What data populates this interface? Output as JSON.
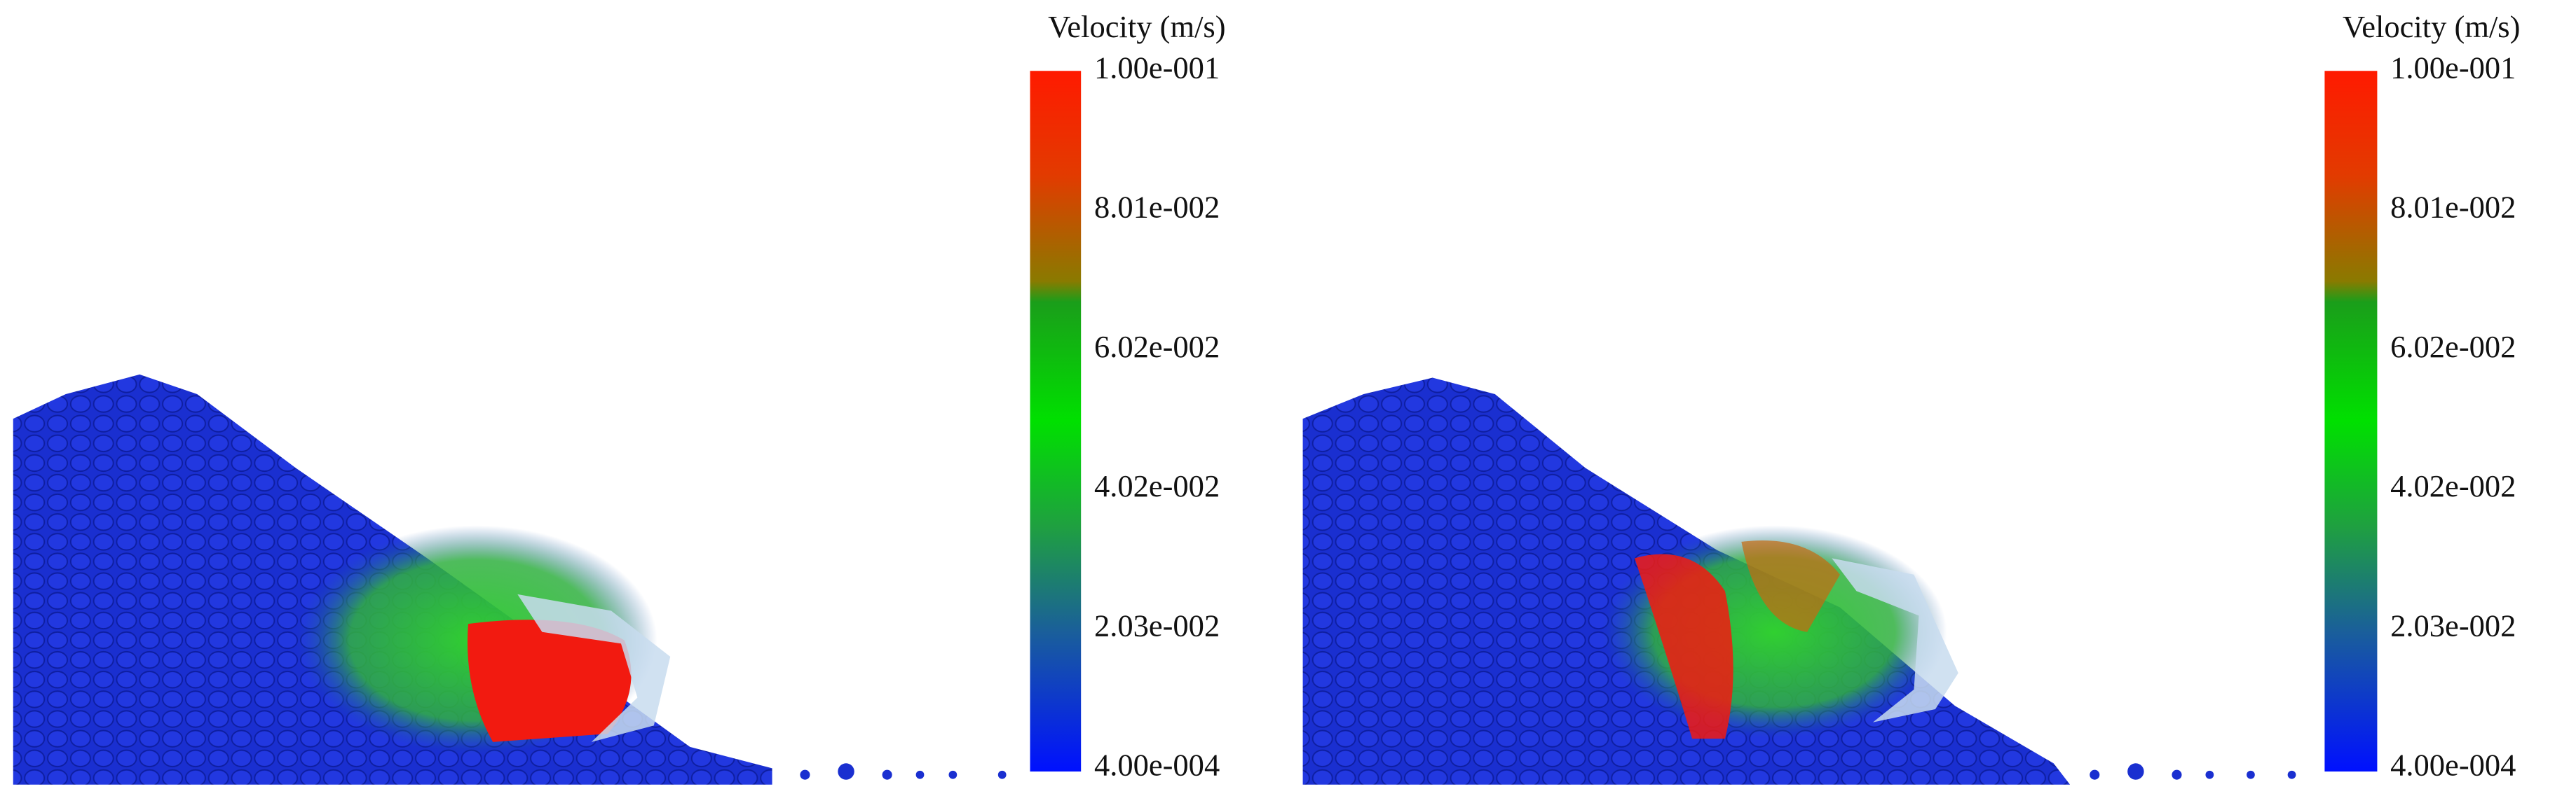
{
  "panels": [
    {
      "colorbar": {
        "title": "Velocity (m/s)",
        "ticks": [
          "1.00e-001",
          "8.01e-002",
          "6.02e-002",
          "4.02e-002",
          "2.03e-002",
          "4.00e-004"
        ]
      }
    },
    {
      "colorbar": {
        "title": "Velocity (m/s)",
        "ticks": [
          "1.00e-001",
          "8.01e-002",
          "6.02e-002",
          "4.02e-002",
          "2.03e-002",
          "4.00e-004"
        ]
      }
    }
  ]
}
